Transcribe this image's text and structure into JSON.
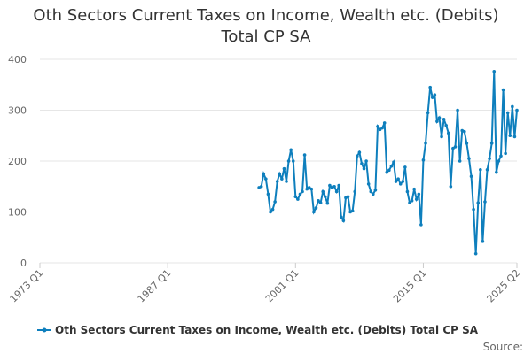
{
  "chart_data": {
    "type": "line",
    "title": "Oth Sectors Current Taxes on Income, Wealth etc. (Debits) Total CP SA",
    "source": "Source:",
    "x": [
      "1997 Q1",
      "1997 Q2",
      "1997 Q3",
      "1997 Q4",
      "1998 Q1",
      "1998 Q2",
      "1998 Q3",
      "1998 Q4",
      "1999 Q1",
      "1999 Q2",
      "1999 Q3",
      "1999 Q4",
      "2000 Q1",
      "2000 Q2",
      "2000 Q3",
      "2000 Q4",
      "2001 Q1",
      "2001 Q2",
      "2001 Q3",
      "2001 Q4",
      "2002 Q1",
      "2002 Q2",
      "2002 Q3",
      "2002 Q4",
      "2003 Q1",
      "2003 Q2",
      "2003 Q3",
      "2003 Q4",
      "2004 Q1",
      "2004 Q2",
      "2004 Q3",
      "2004 Q4",
      "2005 Q1",
      "2005 Q2",
      "2005 Q3",
      "2005 Q4",
      "2006 Q1",
      "2006 Q2",
      "2006 Q3",
      "2006 Q4",
      "2007 Q1",
      "2007 Q2",
      "2007 Q3",
      "2007 Q4",
      "2008 Q1",
      "2008 Q2",
      "2008 Q3",
      "2008 Q4",
      "2009 Q1",
      "2009 Q2",
      "2009 Q3",
      "2009 Q4",
      "2010 Q1",
      "2010 Q2",
      "2010 Q3",
      "2010 Q4",
      "2011 Q1",
      "2011 Q2",
      "2011 Q3",
      "2011 Q4",
      "2012 Q1",
      "2012 Q2",
      "2012 Q3",
      "2012 Q4",
      "2013 Q1",
      "2013 Q2",
      "2013 Q3",
      "2013 Q4",
      "2014 Q1",
      "2014 Q2",
      "2014 Q3",
      "2014 Q4",
      "2015 Q1",
      "2015 Q2",
      "2015 Q3",
      "2015 Q4",
      "2016 Q1",
      "2016 Q2",
      "2016 Q3",
      "2016 Q4",
      "2017 Q1",
      "2017 Q2",
      "2017 Q3",
      "2017 Q4",
      "2018 Q1",
      "2018 Q2",
      "2018 Q3",
      "2018 Q4",
      "2019 Q1",
      "2019 Q2",
      "2019 Q3",
      "2019 Q4",
      "2020 Q1",
      "2020 Q2",
      "2020 Q3",
      "2020 Q4",
      "2021 Q1",
      "2021 Q2",
      "2021 Q3",
      "2021 Q4",
      "2022 Q1",
      "2022 Q2",
      "2022 Q3",
      "2022 Q4",
      "2023 Q1",
      "2023 Q2",
      "2023 Q3",
      "2023 Q4",
      "2024 Q1",
      "2024 Q2",
      "2024 Q3",
      "2024 Q4",
      "2025 Q1",
      "2025 Q2"
    ],
    "series": [
      {
        "name": "Oth Sectors Current Taxes on Income, Wealth etc. (Debits) Total CP SA",
        "color": "#0e7fbd",
        "values": [
          148,
          150,
          175,
          165,
          135,
          100,
          105,
          120,
          160,
          175,
          165,
          185,
          160,
          200,
          222,
          200,
          130,
          125,
          135,
          140,
          212,
          145,
          148,
          145,
          100,
          108,
          122,
          118,
          140,
          130,
          117,
          152,
          148,
          150,
          140,
          152,
          90,
          83,
          128,
          130,
          100,
          102,
          140,
          210,
          217,
          195,
          185,
          200,
          155,
          140,
          135,
          143,
          268,
          262,
          265,
          275,
          178,
          182,
          190,
          198,
          160,
          165,
          155,
          160,
          188,
          140,
          118,
          122,
          145,
          125,
          135,
          75,
          202,
          235,
          295,
          345,
          325,
          330,
          278,
          285,
          248,
          282,
          270,
          255,
          150,
          225,
          228,
          300,
          200,
          260,
          258,
          235,
          205,
          170,
          105,
          18,
          118,
          183,
          42,
          120,
          183,
          205,
          235,
          376,
          178,
          200,
          210,
          340,
          215,
          295,
          250,
          307,
          248,
          300
        ]
      }
    ],
    "xlim": [
      "1973 Q1",
      "2025 Q2"
    ],
    "xticks": [
      "1973 Q1",
      "1987 Q1",
      "2001 Q1",
      "2015 Q1",
      "2025 Q2"
    ],
    "ylim": [
      0,
      400
    ],
    "yticks": [
      0,
      100,
      200,
      300,
      400
    ],
    "grid": true
  }
}
